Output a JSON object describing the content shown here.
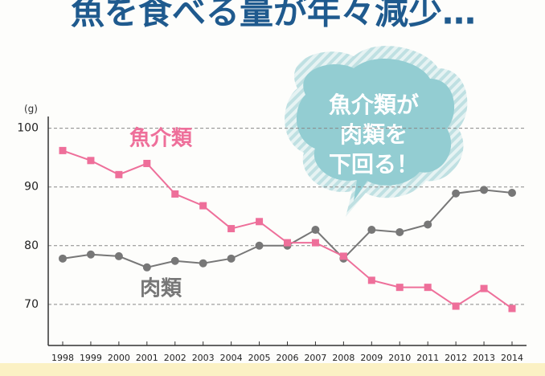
{
  "chart_data": {
    "type": "line",
    "title": "魚を食べる量が年々減少…",
    "y_unit": "(g)",
    "annotation": [
      "魚介類が",
      "肉類を",
      "下回る！"
    ],
    "categories": [
      "1998",
      "1999",
      "2000",
      "2001",
      "2002",
      "2003",
      "2004",
      "2005",
      "2006",
      "2007",
      "2008",
      "2009",
      "2010",
      "2011",
      "2012",
      "2013",
      "2014"
    ],
    "series": [
      {
        "name": "魚介類",
        "color": "#ee6f9a",
        "marker": "square",
        "values": [
          96.2,
          94.5,
          92.1,
          94.0,
          88.8,
          86.8,
          82.9,
          84.1,
          80.5,
          80.5,
          78.2,
          74.1,
          72.9,
          72.9,
          69.7,
          72.7,
          69.3
        ]
      },
      {
        "name": "肉類",
        "color": "#777777",
        "marker": "circle",
        "values": [
          77.8,
          78.5,
          78.2,
          76.3,
          77.4,
          77.0,
          77.8,
          80.0,
          80.0,
          82.7,
          77.8,
          82.7,
          82.3,
          83.6,
          88.9,
          89.5,
          89.0
        ]
      }
    ],
    "ylim": [
      63,
      102
    ],
    "yticks": [
      70,
      80,
      90,
      100
    ],
    "grid": true
  }
}
